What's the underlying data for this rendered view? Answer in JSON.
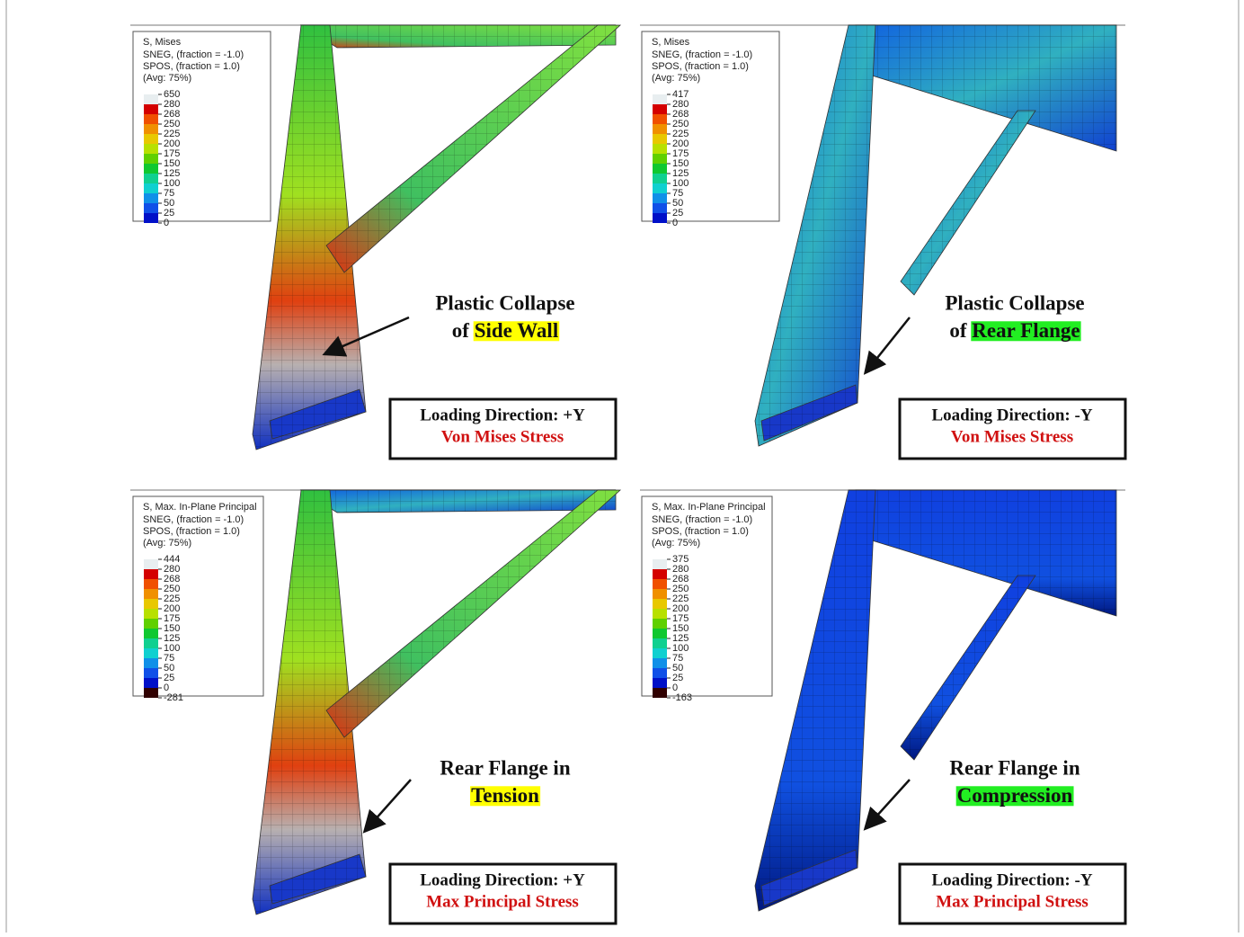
{
  "panels": [
    {
      "legend": {
        "title": "S, Mises",
        "lines": [
          "SNEG, (fraction = -1.0)",
          "SPOS, (fraction = 1.0)",
          "(Avg: 75%)"
        ],
        "ticks": [
          650,
          280,
          268,
          250,
          225,
          200,
          175,
          150,
          125,
          100,
          75,
          50,
          25,
          0
        ]
      },
      "annotation": {
        "line1": "Plastic Collapse",
        "prefix": "of",
        "highlight": "Side Wall",
        "highlight_color": "#ffff00"
      },
      "box": {
        "direction": "Loading Direction: +Y",
        "stress": "Von Mises Stress"
      }
    },
    {
      "legend": {
        "title": "S, Mises",
        "lines": [
          "SNEG, (fraction = -1.0)",
          "SPOS, (fraction = 1.0)",
          "(Avg: 75%)"
        ],
        "ticks": [
          417,
          280,
          268,
          250,
          225,
          200,
          175,
          150,
          125,
          100,
          75,
          50,
          25,
          0
        ]
      },
      "annotation": {
        "line1": "Plastic Collapse",
        "prefix": "of",
        "highlight": "Rear Flange",
        "highlight_color": "#22ee22"
      },
      "box": {
        "direction": "Loading Direction: -Y",
        "stress": "Von Mises Stress"
      }
    },
    {
      "legend": {
        "title": "S, Max. In-Plane Principal",
        "lines": [
          "SNEG, (fraction = -1.0)",
          "SPOS, (fraction = 1.0)",
          "(Avg: 75%)"
        ],
        "ticks": [
          444,
          280,
          268,
          250,
          225,
          200,
          175,
          150,
          125,
          100,
          75,
          50,
          25,
          0,
          -281
        ]
      },
      "annotation": {
        "line1": "Rear Flange in",
        "highlight": "Tension",
        "highlight_color": "#ffff00"
      },
      "box": {
        "direction": "Loading Direction: +Y",
        "stress": "Max Principal Stress"
      }
    },
    {
      "legend": {
        "title": "S, Max. In-Plane Principal",
        "lines": [
          "SNEG, (fraction = -1.0)",
          "SPOS, (fraction = 1.0)",
          "(Avg: 75%)"
        ],
        "ticks": [
          375,
          280,
          268,
          250,
          225,
          200,
          175,
          150,
          125,
          100,
          75,
          50,
          25,
          0,
          -163
        ]
      },
      "annotation": {
        "line1": "Rear Flange in",
        "highlight": "Compression",
        "highlight_color": "#22ee22"
      },
      "box": {
        "direction": "Loading Direction: -Y",
        "stress": "Max Principal Stress"
      }
    }
  ]
}
